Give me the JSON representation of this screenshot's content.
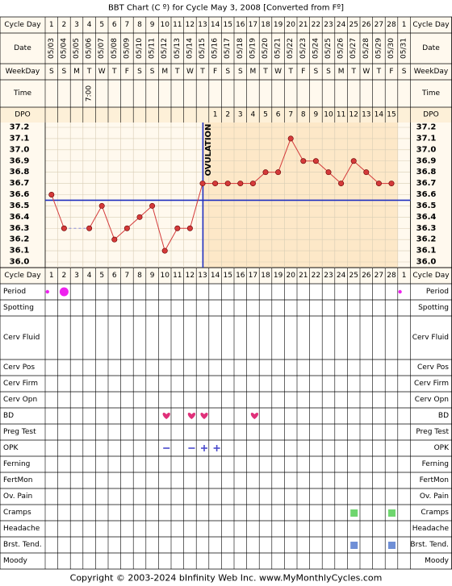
{
  "title": "BBT Chart (C º) for Cycle May 3, 2008  [Converted from Fº]",
  "footer": "Copyright © 2003-2024 bInfinity Web Inc.     www.MyMonthlyCycles.com",
  "row_labels": {
    "cycle_day": "Cycle Day",
    "date": "Date",
    "weekday": "WeekDay",
    "time": "Time",
    "dpo": "DPO",
    "period": "Period",
    "spotting": "Spotting",
    "cerv_fluid": "Cerv Fluid",
    "cerv_pos": "Cerv Pos",
    "cerv_firm": "Cerv Firm",
    "cerv_opn": "Cerv Opn",
    "bd": "BD",
    "preg_test": "Preg Test",
    "opk": "OPK",
    "ferning": "Ferning",
    "fertmon": "FertMon",
    "ov_pain": "Ov. Pain",
    "cramps": "Cramps",
    "headache": "Headache",
    "brst_tend": "Brst. Tend.",
    "moody": "Moody"
  },
  "ovulation_label": "OVULATION",
  "colors": {
    "background": "#fff9ee",
    "luteal": "#fde8c8",
    "grid": "#d8cdb5",
    "coverline": "#1f2fbf",
    "temp_line": "#d43a3a",
    "period": "#ee22ee",
    "bd": "#e0307a",
    "opk": "#4a4acc",
    "cramps": "#6fd66f",
    "brst_tend": "#6f8fd6"
  },
  "chart_data": {
    "type": "line",
    "cycle_days": [
      "1",
      "2",
      "3",
      "4",
      "5",
      "6",
      "7",
      "8",
      "9",
      "10",
      "11",
      "12",
      "13",
      "14",
      "15",
      "16",
      "17",
      "18",
      "19",
      "20",
      "21",
      "22",
      "23",
      "24",
      "25",
      "26",
      "27",
      "28",
      "1"
    ],
    "dates": [
      "05/03",
      "05/04",
      "05/05",
      "05/06",
      "05/07",
      "05/08",
      "05/09",
      "05/10",
      "05/11",
      "05/12",
      "05/13",
      "05/14",
      "05/15",
      "05/16",
      "05/17",
      "05/18",
      "05/19",
      "05/20",
      "05/21",
      "05/22",
      "05/23",
      "05/24",
      "05/25",
      "05/26",
      "05/27",
      "05/28",
      "05/29",
      "05/30",
      "05/31"
    ],
    "weekdays": [
      "S",
      "S",
      "M",
      "T",
      "W",
      "T",
      "F",
      "S",
      "S",
      "M",
      "T",
      "W",
      "T",
      "F",
      "S",
      "S",
      "M",
      "T",
      "W",
      "T",
      "F",
      "S",
      "S",
      "M",
      "T",
      "W",
      "T",
      "F",
      "S"
    ],
    "time": [
      "",
      "",
      "",
      "7:00",
      "",
      "",
      "",
      "",
      "",
      "",
      "",
      "",
      "",
      "",
      "",
      "",
      "",
      "",
      "",
      "",
      "",
      "",
      "",
      "",
      "",
      "",
      "",
      "",
      ""
    ],
    "dpo": [
      "",
      "",
      "",
      "",
      "",
      "",
      "",
      "",
      "",
      "",
      "",
      "",
      "",
      "1",
      "2",
      "3",
      "4",
      "5",
      "6",
      "7",
      "8",
      "9",
      "10",
      "11",
      "12",
      "13",
      "14",
      "15",
      ""
    ],
    "y_ticks": [
      "37.2",
      "37.1",
      "37.0",
      "36.9",
      "36.8",
      "36.7",
      "36.6",
      "36.5",
      "36.4",
      "36.3",
      "36.2",
      "36.1",
      "36.0"
    ],
    "ylim": [
      36.0,
      37.2
    ],
    "temperatures": [
      36.6,
      36.3,
      null,
      36.3,
      36.5,
      36.2,
      36.3,
      36.4,
      36.5,
      36.1,
      36.3,
      36.3,
      36.7,
      36.7,
      36.7,
      36.7,
      36.7,
      36.8,
      36.8,
      37.1,
      36.9,
      36.9,
      36.8,
      36.7,
      36.9,
      36.8,
      36.7,
      36.7,
      null
    ],
    "coverline": 36.55,
    "ovulation_day_index": 12,
    "period": [
      "small",
      "large",
      "",
      "",
      "",
      "",
      "",
      "",
      "",
      "",
      "",
      "",
      "",
      "",
      "",
      "",
      "",
      "",
      "",
      "",
      "",
      "",
      "",
      "",
      "",
      "",
      "",
      "",
      "small"
    ],
    "bd": [
      10,
      12,
      13,
      17
    ],
    "opk": [
      10,
      12,
      13,
      14
    ],
    "cramps": [
      25,
      28
    ],
    "brst_tend": [
      25,
      28
    ]
  }
}
